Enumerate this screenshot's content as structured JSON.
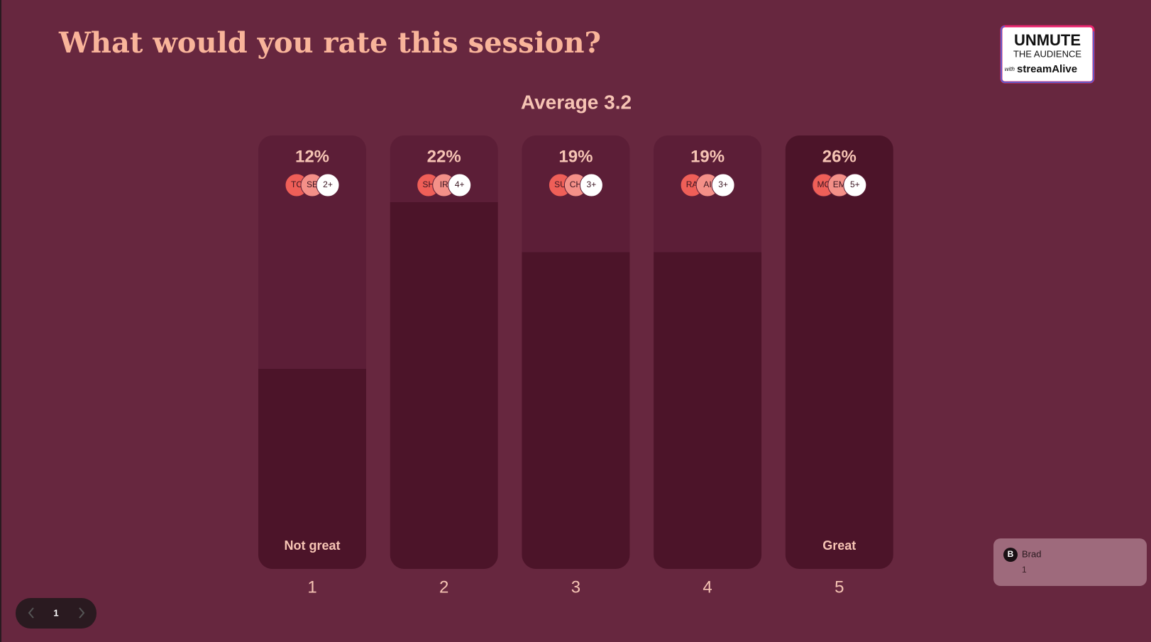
{
  "title": "What would you rate this session?",
  "logo": {
    "line1": "UNMUTE",
    "line2": "THE AUDIENCE",
    "line3a": "with",
    "line3b": "streamAlive"
  },
  "chart_data": {
    "type": "bar",
    "title": "Average 3.2",
    "categories": [
      "1",
      "2",
      "3",
      "4",
      "5"
    ],
    "values": [
      12,
      22,
      19,
      19,
      26
    ],
    "value_labels": [
      "12%",
      "22%",
      "19%",
      "19%",
      "26%"
    ],
    "bar_labels": [
      "Not great",
      null,
      null,
      null,
      "Great"
    ],
    "avatars": [
      [
        "TC",
        "SE",
        "2+"
      ],
      [
        "SH",
        "IR",
        "4+"
      ],
      [
        "SU",
        "CH",
        "3+"
      ],
      [
        "RA",
        "AI",
        "3+"
      ],
      [
        "MC",
        "EM",
        "5+"
      ]
    ],
    "color": "#4c1429"
  },
  "pagination": {
    "page": "1"
  },
  "comment": {
    "initial": "B",
    "name": "Brad",
    "text": "1"
  }
}
